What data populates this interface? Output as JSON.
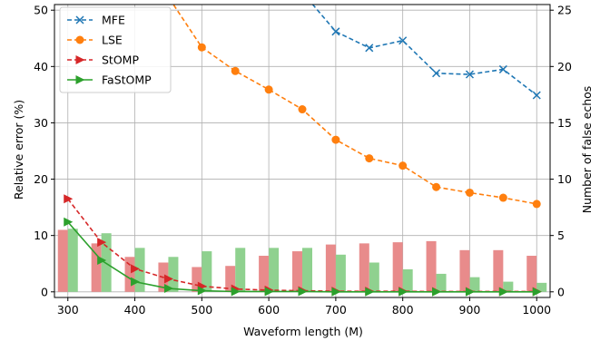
{
  "chart_data": {
    "type": "line",
    "xlabel": "Waveform length (M)",
    "ylabel": "Relative error (%)",
    "ylabel_right": "Number of false echos",
    "xlim": [
      280,
      1020
    ],
    "ylim": [
      -1,
      51
    ],
    "ylim_right": [
      -0.5,
      25.5
    ],
    "x_ticks": [
      300,
      400,
      500,
      600,
      700,
      800,
      900,
      1000
    ],
    "y_ticks": [
      0,
      10,
      20,
      30,
      40,
      50
    ],
    "y_ticks_right": [
      0,
      5,
      10,
      15,
      20,
      25
    ],
    "grid": true,
    "legend_position": "top-left",
    "x": [
      300,
      350,
      400,
      450,
      500,
      550,
      600,
      650,
      700,
      750,
      800,
      850,
      900,
      950,
      1000
    ],
    "series": [
      {
        "name": "MFE",
        "axis": "left",
        "marker": "x",
        "color": "#1f77b4",
        "values": [
          null,
          null,
          null,
          null,
          null,
          null,
          null,
          null,
          46.2,
          43.3,
          44.6,
          38.8,
          38.6,
          39.5,
          34.9
        ],
        "leading_line": [
          [
            637,
            55
          ],
          [
            700,
            46.2
          ]
        ]
      },
      {
        "name": "LSE",
        "axis": "left",
        "marker": "circle",
        "color": "#ff7f0e",
        "values": [
          null,
          null,
          null,
          null,
          43.4,
          39.2,
          35.9,
          32.4,
          27.0,
          23.7,
          22.4,
          18.6,
          17.6,
          16.7,
          15.6
        ],
        "leading_line": [
          [
            452,
            52
          ],
          [
            500,
            43.4
          ]
        ]
      },
      {
        "name": "StOMP",
        "axis": "left",
        "marker": "triangle-right",
        "color": "#d62728",
        "values": [
          16.5,
          8.8,
          4.1,
          2.3,
          1.0,
          0.5,
          0.3,
          0.2,
          0.1,
          0.1,
          0.1,
          0.05,
          0.05,
          0.05,
          0.05
        ]
      },
      {
        "name": "FaStOMP",
        "axis": "left",
        "marker": "triangle-right",
        "color": "#2ca02c",
        "values": [
          12.4,
          5.6,
          1.8,
          0.6,
          0.2,
          0.05,
          0.05,
          0.05,
          0,
          0,
          0,
          0,
          0,
          0,
          0
        ]
      }
    ],
    "bars": {
      "axis": "right",
      "series": [
        {
          "color": "#e88b8b",
          "values": [
            5.5,
            4.3,
            3.1,
            2.6,
            2.2,
            2.3,
            3.2,
            3.6,
            4.2,
            4.3,
            4.4,
            4.5,
            3.7,
            3.7,
            3.2
          ]
        },
        {
          "color": "#8fd18f",
          "values": [
            5.6,
            5.2,
            3.9,
            3.1,
            3.6,
            3.9,
            3.9,
            3.9,
            3.3,
            2.6,
            2.0,
            1.6,
            1.3,
            0.9,
            0.8
          ]
        }
      ]
    }
  }
}
